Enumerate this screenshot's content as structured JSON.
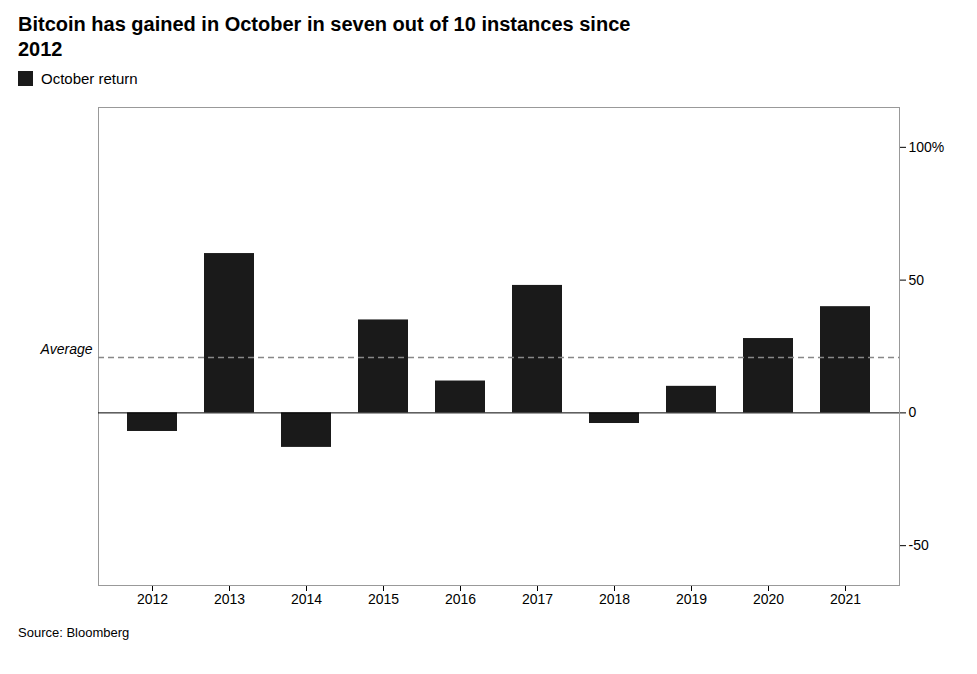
{
  "chart_data": {
    "type": "bar",
    "title": "Bitcoin has gained in October in seven out of 10 instances since\n2012",
    "source": "Source: Bloomberg",
    "categories": [
      "2012",
      "2013",
      "2014",
      "2015",
      "2016",
      "2017",
      "2018",
      "2019",
      "2020",
      "2021"
    ],
    "series": [
      {
        "name": "October return",
        "color": "#1a1a1a",
        "values": [
          -7,
          60,
          -13,
          35,
          12,
          48,
          -4,
          10,
          28,
          40
        ]
      }
    ],
    "average": 20.9,
    "average_label": "Average",
    "average_color": "#888888",
    "average_line_style": "dashed",
    "ylim": [
      -65,
      115
    ],
    "yticks": [
      -50,
      0,
      50,
      {
        "value": 100,
        "label": "100%"
      }
    ],
    "grid": false,
    "legend": "upper left"
  }
}
